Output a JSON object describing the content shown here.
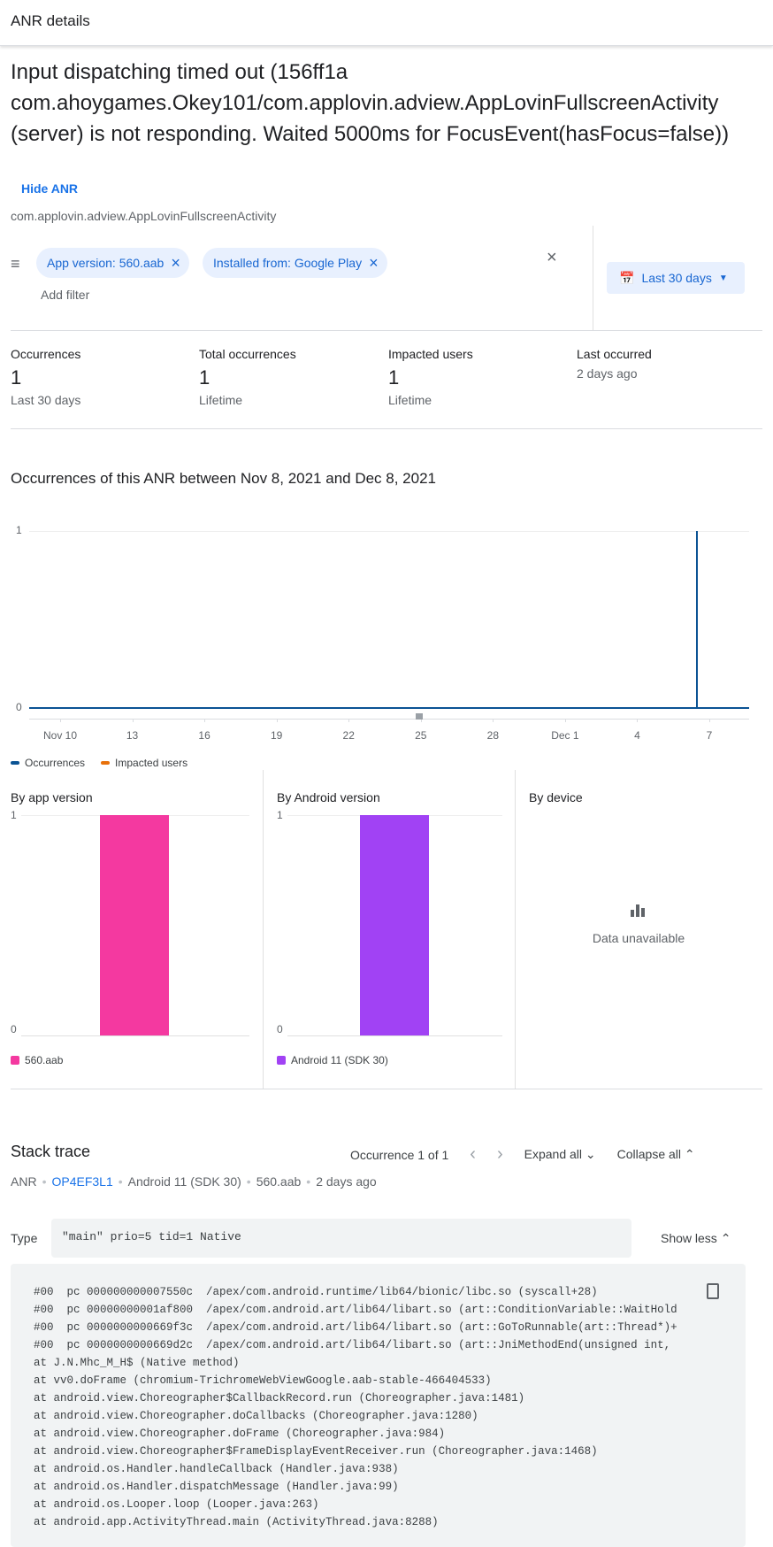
{
  "header": {
    "title": "ANR details"
  },
  "anr": {
    "title": "Input dispatching timed out (156ff1a com.ahoygames.Okey101/com.applovin.adview.AppLovinFullscreenActivity (server) is not responding. Waited 5000ms for FocusEvent(hasFocus=false))",
    "hide_label": "Hide ANR",
    "activity": "com.applovin.adview.AppLovinFullscreenActivity"
  },
  "filters": {
    "chips": [
      "App version: 560.aab",
      "Installed from: Google Play"
    ],
    "add_filter": "Add filter",
    "date_range": "Last 30 days"
  },
  "stats": [
    {
      "label": "Occurrences",
      "value": "1",
      "sub": "Last 30 days"
    },
    {
      "label": "Total occurrences",
      "value": "1",
      "sub": "Lifetime"
    },
    {
      "label": "Impacted users",
      "value": "1",
      "sub": "Lifetime"
    },
    {
      "label": "Last occurred",
      "value": "2 days ago"
    }
  ],
  "chart_data": [
    {
      "type": "line",
      "title": "Occurrences of this ANR between Nov 8, 2021 and Dec 8, 2021",
      "x_ticks": [
        "Nov 10",
        "13",
        "16",
        "19",
        "22",
        "25",
        "28",
        "Dec 1",
        "4",
        "7"
      ],
      "y_ticks": [
        "0",
        "1"
      ],
      "ylim": [
        0,
        1
      ],
      "series": [
        {
          "name": "Occurrences",
          "color": "#0b5394",
          "points": [
            [
              "Dec 6",
              1
            ]
          ]
        },
        {
          "name": "Impacted users",
          "color": "#e8710a",
          "points": [
            [
              "Dec 6",
              1
            ]
          ]
        }
      ],
      "legend": "bottom-left"
    },
    {
      "type": "bar",
      "title": "By app version",
      "categories": [
        "560.aab"
      ],
      "values": [
        1
      ],
      "color": "#f439a0",
      "y_ticks": [
        "0",
        "1"
      ]
    },
    {
      "type": "bar",
      "title": "By Android version",
      "categories": [
        "Android 11 (SDK 30)"
      ],
      "values": [
        1
      ],
      "color": "#a142f4",
      "y_ticks": [
        "0",
        "1"
      ]
    }
  ],
  "by_device": {
    "title": "By device",
    "message": "Data unavailable"
  },
  "stack": {
    "title": "Stack trace",
    "occurrence": "Occurrence 1 of 1",
    "expand_all": "Expand all",
    "collapse_all": "Collapse all",
    "meta": [
      "ANR",
      "OP4EF3L1",
      "Android 11 (SDK 30)",
      "560.aab",
      "2 days ago"
    ],
    "type_label": "Type",
    "type_value": "\"main\" prio=5 tid=1 Native",
    "show_less": "Show less",
    "lines": [
      "#00  pc 000000000007550c  /apex/com.android.runtime/lib64/bionic/libc.so (syscall+28)",
      "#00  pc 00000000001af800  /apex/com.android.art/lib64/libart.so (art::ConditionVariable::WaitHold",
      "#00  pc 0000000000669f3c  /apex/com.android.art/lib64/libart.so (art::GoToRunnable(art::Thread*)+",
      "#00  pc 0000000000669d2c  /apex/com.android.art/lib64/libart.so (art::JniMethodEnd(unsigned int,",
      "at J.N.Mhc_M_H$ (Native method)",
      "at vv0.doFrame (chromium-TrichromeWebViewGoogle.aab-stable-466404533)",
      "at android.view.Choreographer$CallbackRecord.run (Choreographer.java:1481)",
      "at android.view.Choreographer.doCallbacks (Choreographer.java:1280)",
      "at android.view.Choreographer.doFrame (Choreographer.java:984)",
      "at android.view.Choreographer$FrameDisplayEventReceiver.run (Choreographer.java:1468)",
      "at android.os.Handler.handleCallback (Handler.java:938)",
      "at android.os.Handler.dispatchMessage (Handler.java:99)",
      "at android.os.Looper.loop (Looper.java:263)",
      "at android.app.ActivityThread.main (ActivityThread.java:8288)"
    ]
  }
}
